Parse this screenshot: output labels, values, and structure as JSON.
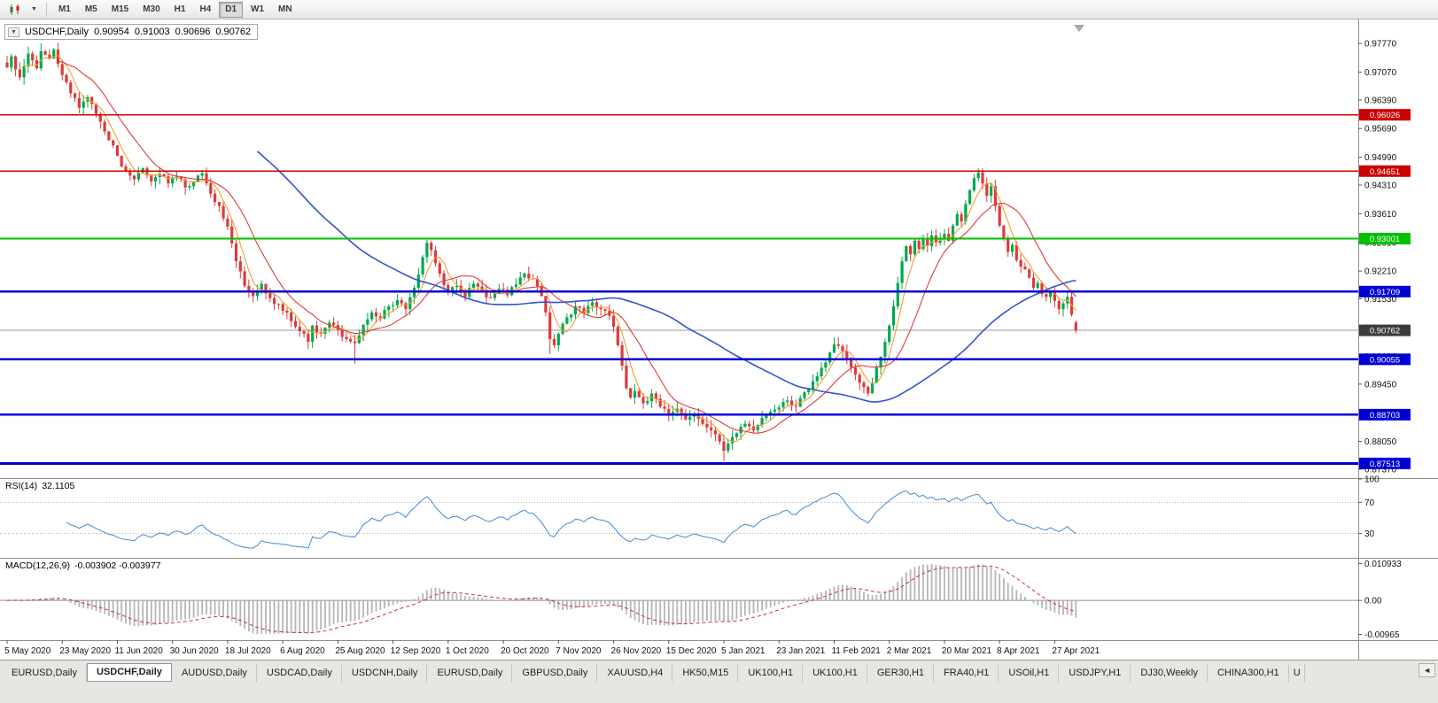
{
  "toolbar": {
    "chart_type_icon": "candlestick-chart",
    "dropdown_icon": "chevron-down",
    "timeframes": [
      "M1",
      "M5",
      "M15",
      "M30",
      "H1",
      "H4",
      "D1",
      "W1",
      "MN"
    ],
    "active_timeframe": "D1"
  },
  "chart_header": {
    "collapse_icon": "▼",
    "symbol": "USDCHF,Daily",
    "open": "0.90954",
    "high": "0.91003",
    "low": "0.90696",
    "close": "0.90762"
  },
  "indicators": {
    "rsi_label": "RSI(14)",
    "rsi_value": "32.1105",
    "macd_label": "MACD(12,26,9)",
    "macd_values": "-0.003902 -0.003977"
  },
  "price_axis": {
    "labels": [
      "0.97770",
      "0.97070",
      "0.96390",
      "0.95690",
      "0.94990",
      "0.94310",
      "0.93610",
      "0.92910",
      "0.92210",
      "0.91530",
      "0.90830",
      "0.90130",
      "0.89450",
      "0.88750",
      "0.88050",
      "0.87370"
    ]
  },
  "date_axis": {
    "labels": [
      "5 May 2020",
      "23 May 2020",
      "11 Jun 2020",
      "30 Jun 2020",
      "18 Jul 2020",
      "6 Aug 2020",
      "25 Aug 2020",
      "12 Sep 2020",
      "1 Oct 2020",
      "20 Oct 2020",
      "7 Nov 2020",
      "26 Nov 2020",
      "15 Dec 2020",
      "5 Jan 2021",
      "23 Jan 2021",
      "11 Feb 2021",
      "2 Mar 2021",
      "20 Mar 2021",
      "8 Apr 2021",
      "27 Apr 2021"
    ]
  },
  "tabs": {
    "items": [
      {
        "label": "EURUSD,Daily"
      },
      {
        "label": "USDCHF,Daily",
        "active": true
      },
      {
        "label": "AUDUSD,Daily"
      },
      {
        "label": "USDCAD,Daily"
      },
      {
        "label": "USDCNH,Daily"
      },
      {
        "label": "EURUSD,Daily"
      },
      {
        "label": "GBPUSD,Daily"
      },
      {
        "label": "XAUUSD,H4"
      },
      {
        "label": "HK50,M15"
      },
      {
        "label": "UK100,H1"
      },
      {
        "label": "UK100,H1"
      },
      {
        "label": "GER30,H1"
      },
      {
        "label": "FRA40,H1"
      },
      {
        "label": "USOil,H1"
      },
      {
        "label": "USDJPY,H1"
      },
      {
        "label": "DJ30,Weekly"
      },
      {
        "label": "CHINA300,H1"
      },
      {
        "label": "U",
        "partial": true
      }
    ],
    "scroll_icon": "◄"
  },
  "chart_data": {
    "type": "candlestick",
    "title": "USDCHF,Daily",
    "bars": 253,
    "label_every_bars": 13,
    "y_axis": {
      "max": 0.9777,
      "min": 0.8737
    },
    "colors": {
      "up": "#00A94F",
      "down": "#DD3A3A"
    },
    "current_price": {
      "value": 0.90762,
      "label": "0.90762"
    },
    "horizontal_levels": [
      {
        "price": 0.96026,
        "label": "0.96026",
        "color": "#CC0000",
        "width": 1.6
      },
      {
        "price": 0.94651,
        "label": "0.94651",
        "color": "#CC0000",
        "width": 1.6
      },
      {
        "price": 0.93001,
        "label": "0.93001",
        "color": "#00C000",
        "width": 2.2
      },
      {
        "price": 0.91709,
        "label": "0.91709",
        "color": "#0000D4",
        "width": 2.2
      },
      {
        "price": 0.90055,
        "label": "0.90055",
        "color": "#0000D4",
        "width": 2.2
      },
      {
        "price": 0.88703,
        "label": "0.88703",
        "color": "#0000D4",
        "width": 2.2
      },
      {
        "price": 0.87513,
        "label": "0.87513",
        "color": "#0000D4",
        "width": 3
      }
    ],
    "moving_averages": [
      {
        "name": "fast-orange",
        "period": 5,
        "color": "#F0A030",
        "width": 1.1
      },
      {
        "name": "medium-red",
        "period": 13,
        "color": "#E03A3A",
        "width": 1.1
      },
      {
        "name": "slow-blue",
        "period": 60,
        "color": "#3355CC",
        "width": 1.6
      }
    ],
    "rsi": {
      "period": 14,
      "value": 32.1105,
      "levels": [
        100,
        70,
        30
      ],
      "color": "#4F93D8"
    },
    "macd": {
      "fast": 12,
      "slow": 26,
      "signal": 9,
      "value": -0.003902,
      "signal_value": -0.003977,
      "scale_max_label": "0.010933",
      "scale_zero_label": "0.00",
      "scale_min_label": "-0.00965"
    },
    "last_candle": {
      "open": 0.90954,
      "high": 0.91003,
      "low": 0.90696,
      "close": 0.90762
    },
    "wick_spikes": [
      {
        "i": 8,
        "high": 0.9777
      },
      {
        "i": 46,
        "high": 0.9468
      },
      {
        "i": 82,
        "low": 0.8995
      },
      {
        "i": 99,
        "high": 0.9297
      },
      {
        "i": 128,
        "low": 0.9018
      },
      {
        "i": 169,
        "low": 0.8757
      },
      {
        "i": 195,
        "high": 0.9046
      },
      {
        "i": 229,
        "high": 0.9472
      }
    ],
    "close_anchors": [
      [
        0,
        0.9718
      ],
      [
        1,
        0.9745
      ],
      [
        3,
        0.9694
      ],
      [
        5,
        0.9752
      ],
      [
        7,
        0.9716
      ],
      [
        8,
        0.9758
      ],
      [
        10,
        0.974
      ],
      [
        11,
        0.9762
      ],
      [
        13,
        0.97
      ],
      [
        15,
        0.9655
      ],
      [
        17,
        0.962
      ],
      [
        19,
        0.9646
      ],
      [
        21,
        0.9605
      ],
      [
        23,
        0.9562
      ],
      [
        25,
        0.9528
      ],
      [
        26,
        0.9502
      ],
      [
        28,
        0.9465
      ],
      [
        30,
        0.9445
      ],
      [
        32,
        0.9472
      ],
      [
        34,
        0.944
      ],
      [
        36,
        0.9458
      ],
      [
        38,
        0.9435
      ],
      [
        40,
        0.9452
      ],
      [
        42,
        0.9425
      ],
      [
        44,
        0.944
      ],
      [
        46,
        0.946
      ],
      [
        48,
        0.941
      ],
      [
        50,
        0.938
      ],
      [
        52,
        0.933
      ],
      [
        54,
        0.9245
      ],
      [
        56,
        0.9185
      ],
      [
        58,
        0.916
      ],
      [
        60,
        0.919
      ],
      [
        62,
        0.9155
      ],
      [
        64,
        0.914
      ],
      [
        66,
        0.912
      ],
      [
        68,
        0.9085
      ],
      [
        70,
        0.9068
      ],
      [
        71,
        0.9048
      ],
      [
        72,
        0.9088
      ],
      [
        74,
        0.9068
      ],
      [
        76,
        0.9095
      ],
      [
        78,
        0.9078
      ],
      [
        80,
        0.9055
      ],
      [
        82,
        0.9045
      ],
      [
        84,
        0.909
      ],
      [
        86,
        0.912
      ],
      [
        88,
        0.9105
      ],
      [
        90,
        0.9135
      ],
      [
        92,
        0.915
      ],
      [
        94,
        0.9128
      ],
      [
        96,
        0.918
      ],
      [
        98,
        0.9255
      ],
      [
        99,
        0.929
      ],
      [
        100,
        0.9272
      ],
      [
        101,
        0.924
      ],
      [
        102,
        0.9215
      ],
      [
        104,
        0.9168
      ],
      [
        106,
        0.9185
      ],
      [
        108,
        0.9158
      ],
      [
        110,
        0.919
      ],
      [
        112,
        0.9172
      ],
      [
        114,
        0.9155
      ],
      [
        116,
        0.9178
      ],
      [
        118,
        0.9162
      ],
      [
        120,
        0.9188
      ],
      [
        122,
        0.9215
      ],
      [
        124,
        0.9202
      ],
      [
        126,
        0.916
      ],
      [
        127,
        0.912
      ],
      [
        128,
        0.9055
      ],
      [
        129,
        0.904
      ],
      [
        130,
        0.9068
      ],
      [
        132,
        0.9108
      ],
      [
        134,
        0.9135
      ],
      [
        136,
        0.9118
      ],
      [
        138,
        0.9145
      ],
      [
        140,
        0.9128
      ],
      [
        142,
        0.9112
      ],
      [
        143,
        0.9085
      ],
      [
        144,
        0.904
      ],
      [
        145,
        0.899
      ],
      [
        146,
        0.8935
      ],
      [
        147,
        0.8912
      ],
      [
        148,
        0.8928
      ],
      [
        150,
        0.8898
      ],
      [
        152,
        0.8922
      ],
      [
        154,
        0.889
      ],
      [
        156,
        0.8868
      ],
      [
        158,
        0.8885
      ],
      [
        160,
        0.8858
      ],
      [
        162,
        0.8872
      ],
      [
        164,
        0.8848
      ],
      [
        166,
        0.8832
      ],
      [
        168,
        0.8805
      ],
      [
        169,
        0.8782
      ],
      [
        170,
        0.88
      ],
      [
        172,
        0.8825
      ],
      [
        174,
        0.8848
      ],
      [
        176,
        0.8832
      ],
      [
        178,
        0.8862
      ],
      [
        180,
        0.8878
      ],
      [
        182,
        0.8888
      ],
      [
        184,
        0.8905
      ],
      [
        186,
        0.889
      ],
      [
        188,
        0.8925
      ],
      [
        190,
        0.8952
      ],
      [
        192,
        0.8985
      ],
      [
        194,
        0.9022
      ],
      [
        195,
        0.9042
      ],
      [
        196,
        0.9038
      ],
      [
        198,
        0.9005
      ],
      [
        200,
        0.8968
      ],
      [
        202,
        0.8938
      ],
      [
        203,
        0.8922
      ],
      [
        204,
        0.8948
      ],
      [
        205,
        0.8985
      ],
      [
        206,
        0.9012
      ],
      [
        207,
        0.9048
      ],
      [
        208,
        0.9088
      ],
      [
        209,
        0.9135
      ],
      [
        210,
        0.9192
      ],
      [
        211,
        0.9245
      ],
      [
        212,
        0.9282
      ],
      [
        213,
        0.9262
      ],
      [
        214,
        0.9295
      ],
      [
        215,
        0.9275
      ],
      [
        216,
        0.93
      ],
      [
        217,
        0.9282
      ],
      [
        218,
        0.9308
      ],
      [
        219,
        0.929
      ],
      [
        220,
        0.9302
      ],
      [
        221,
        0.9312
      ],
      [
        222,
        0.9295
      ],
      [
        223,
        0.9332
      ],
      [
        224,
        0.936
      ],
      [
        225,
        0.9342
      ],
      [
        226,
        0.9385
      ],
      [
        227,
        0.9418
      ],
      [
        228,
        0.9448
      ],
      [
        229,
        0.9462
      ],
      [
        230,
        0.9435
      ],
      [
        231,
        0.9405
      ],
      [
        232,
        0.9428
      ],
      [
        233,
        0.938
      ],
      [
        234,
        0.9332
      ],
      [
        235,
        0.93
      ],
      [
        236,
        0.9268
      ],
      [
        237,
        0.9285
      ],
      [
        238,
        0.9248
      ],
      [
        239,
        0.9232
      ],
      [
        240,
        0.9225
      ],
      [
        241,
        0.9205
      ],
      [
        242,
        0.918
      ],
      [
        243,
        0.9192
      ],
      [
        244,
        0.9165
      ],
      [
        245,
        0.9158
      ],
      [
        246,
        0.9172
      ],
      [
        247,
        0.9148
      ],
      [
        248,
        0.9128
      ],
      [
        249,
        0.9142
      ],
      [
        250,
        0.9158
      ],
      [
        251,
        0.9115
      ],
      [
        252,
        0.90762
      ]
    ]
  }
}
